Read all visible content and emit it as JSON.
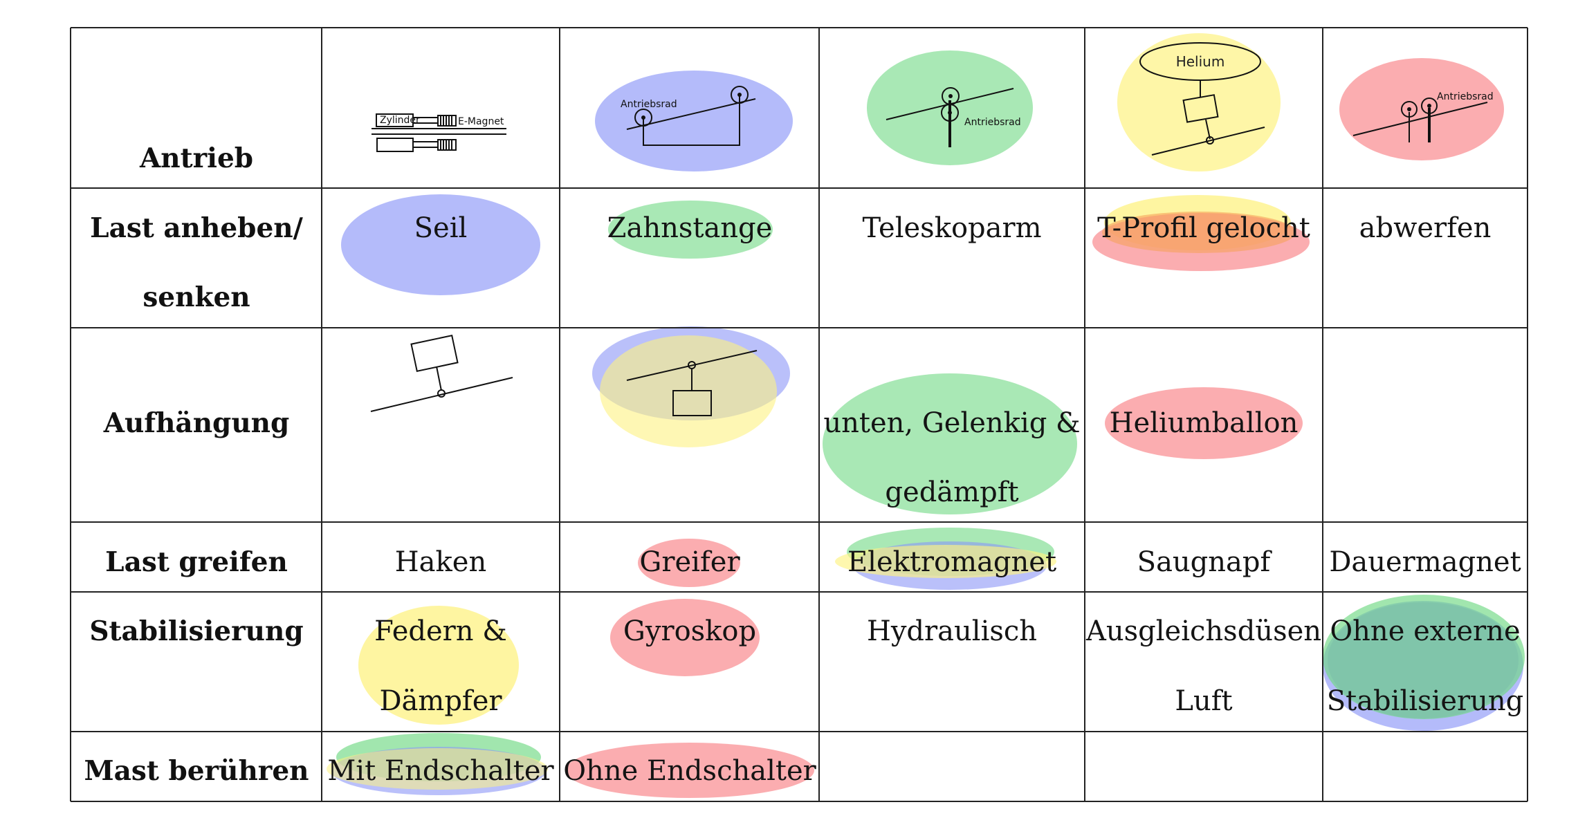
{
  "colors": {
    "blue": "#8c96f7",
    "green": "#6fd983",
    "yellow": "#fdf282",
    "red": "#f98a8f",
    "orange": "#f6a15b",
    "olive": "#b8c077",
    "teal": "#7bbfa8",
    "border": "#222222"
  },
  "rows": [
    {
      "header": [
        "Antrieb"
      ],
      "cells": [
        {
          "sketch": "cylinder-electromagnet",
          "labels": [
            "Zylinder",
            "E-Magnet"
          ],
          "marks": []
        },
        {
          "sketch": "drive-wheel-pulley",
          "labels": [
            "Antriebsrad"
          ],
          "marks": [
            "blue"
          ]
        },
        {
          "sketch": "drive-wheel-pinch",
          "labels": [
            "Antriebsrad"
          ],
          "marks": [
            "green"
          ]
        },
        {
          "sketch": "helium-balloon",
          "labels": [
            "Helium"
          ],
          "marks": [
            "yellow"
          ]
        },
        {
          "sketch": "drive-wheels-double",
          "labels": [
            "Antriebsrad"
          ],
          "marks": [
            "red"
          ]
        }
      ]
    },
    {
      "header": [
        "Last anheben/",
        "senken"
      ],
      "cells": [
        {
          "text": [
            "Seil"
          ],
          "marks": [
            "blue"
          ]
        },
        {
          "text": [
            "Zahnstange"
          ],
          "marks": [
            "green"
          ]
        },
        {
          "text": [
            "Teleskoparm"
          ],
          "marks": []
        },
        {
          "text": [
            "T-Profil gelocht"
          ],
          "marks": [
            "yellow",
            "red",
            "orange"
          ]
        },
        {
          "text": [
            "abwerfen"
          ],
          "marks": []
        }
      ]
    },
    {
      "header": [
        "Aufhängung"
      ],
      "cells": [
        {
          "sketch": "suspension-top",
          "marks": []
        },
        {
          "sketch": "suspension-bottom",
          "marks": [
            "blue",
            "yellow"
          ]
        },
        {
          "text": [
            "unten, Gelenkig &",
            "gedämpft"
          ],
          "marks": [
            "green"
          ]
        },
        {
          "text": [
            "Heliumballon"
          ],
          "marks": [
            "red"
          ]
        },
        {
          "text": [],
          "marks": []
        }
      ]
    },
    {
      "header": [
        "Last greifen"
      ],
      "cells": [
        {
          "text": [
            "Haken"
          ],
          "marks": []
        },
        {
          "text": [
            "Greifer"
          ],
          "marks": [
            "red"
          ]
        },
        {
          "text": [
            "Elektromagnet"
          ],
          "marks": [
            "green",
            "blue",
            "yellow"
          ]
        },
        {
          "text": [
            "Saugnapf"
          ],
          "marks": []
        },
        {
          "text": [
            "Dauermagnet"
          ],
          "marks": []
        }
      ]
    },
    {
      "header": [
        "Stabilisierung"
      ],
      "cells": [
        {
          "text": [
            "Federn &",
            "Dämpfer"
          ],
          "marks": [
            "yellow"
          ]
        },
        {
          "text": [
            "Gyroskop"
          ],
          "marks": [
            "red"
          ]
        },
        {
          "text": [
            "Hydraulisch"
          ],
          "marks": []
        },
        {
          "text": [
            "Ausgleichsdüsen",
            "Luft"
          ],
          "marks": []
        },
        {
          "text": [
            "Ohne externe",
            "Stabilisierung"
          ],
          "marks": [
            "blue",
            "green",
            "teal"
          ]
        }
      ]
    },
    {
      "header": [
        "Mast berühren"
      ],
      "cells": [
        {
          "text": [
            "Mit Endschalter"
          ],
          "marks": [
            "green",
            "blue",
            "yellow"
          ]
        },
        {
          "text": [
            "Ohne Endschalter"
          ],
          "marks": [
            "red"
          ]
        },
        {
          "text": [],
          "marks": []
        },
        {
          "text": [],
          "marks": []
        },
        {
          "text": [],
          "marks": []
        }
      ]
    }
  ]
}
